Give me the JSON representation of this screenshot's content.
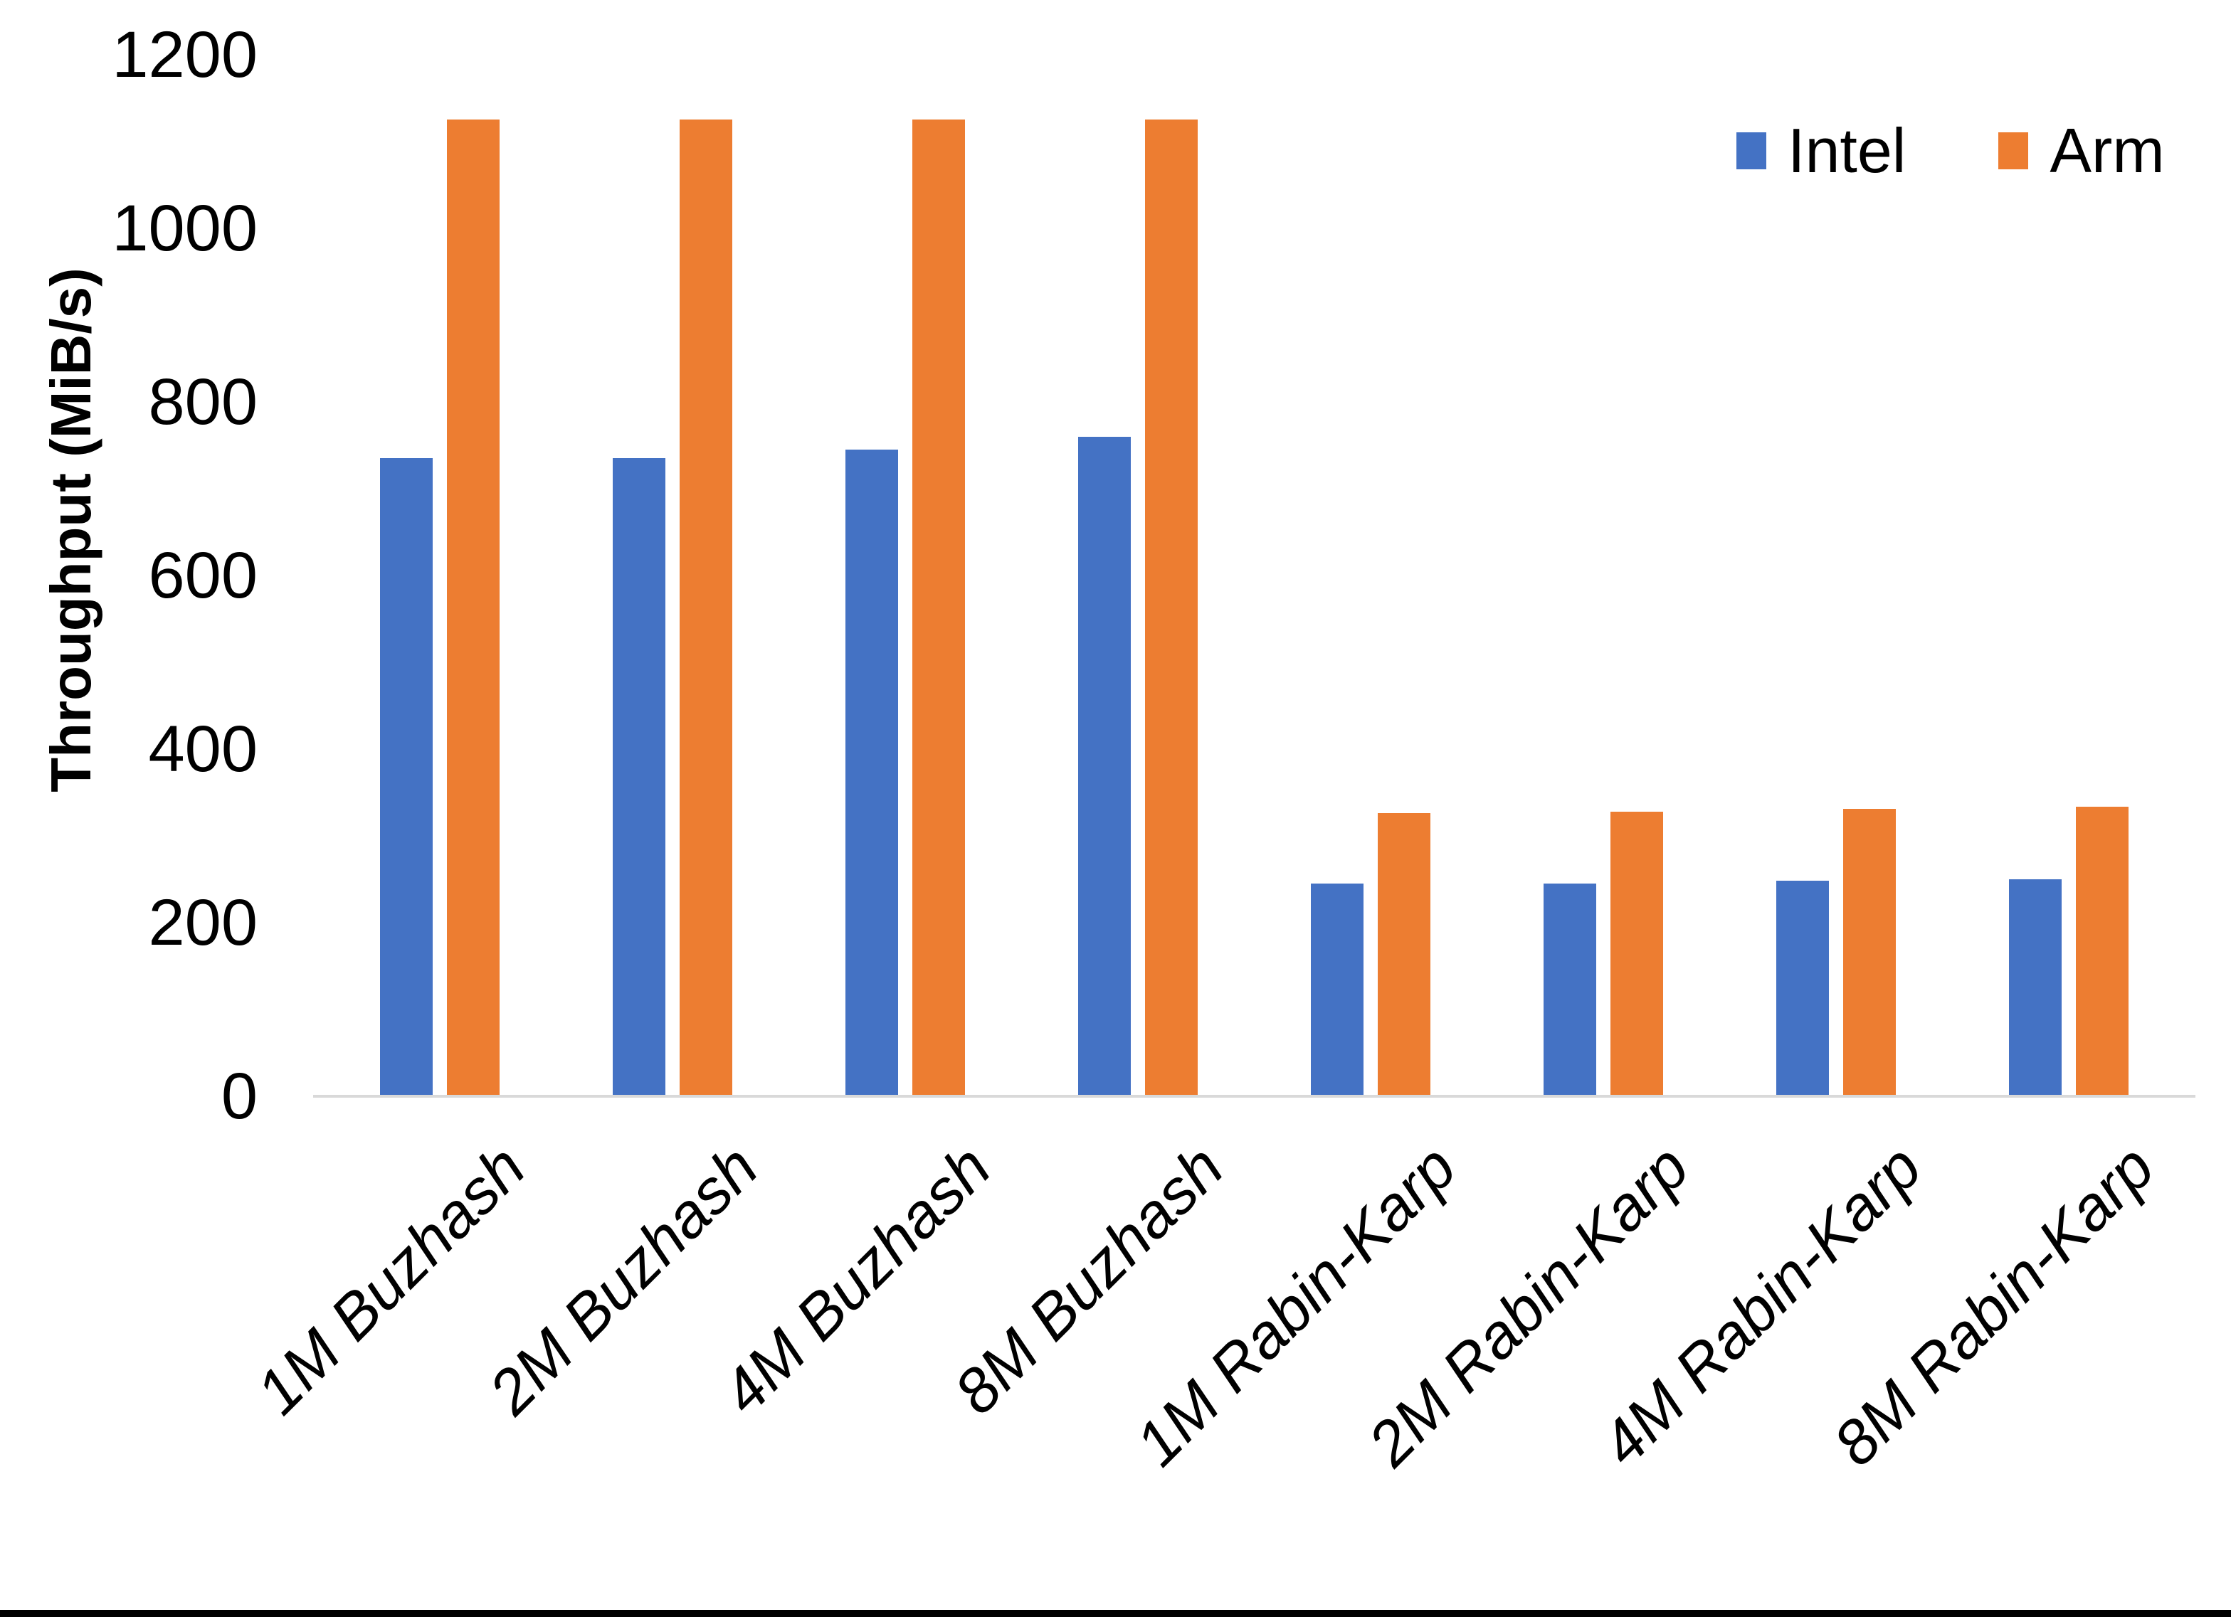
{
  "y_axis": {
    "title": "Throughput (MiB/s)",
    "ticks": [
      0,
      200,
      400,
      600,
      800,
      1000,
      1200
    ]
  },
  "chart_data": {
    "type": "bar",
    "title": "",
    "xlabel": "",
    "ylabel": "Throughput (MiB/s)",
    "categories": [
      "1M Buzhash",
      "2M Buzhash",
      "4M Buzhash",
      "8M Buzhash",
      "1M Rabin-Karp",
      "2M Rabin-Karp",
      "4M Rabin-Karp",
      "8M Rabin-Karp"
    ],
    "series": [
      {
        "name": "Intel",
        "color": "#4472C4",
        "values": [
          735,
          735,
          745,
          760,
          245,
          245,
          248,
          250
        ]
      },
      {
        "name": "Arm",
        "color": "#ED7D31",
        "values": [
          1125,
          1125,
          1125,
          1125,
          326,
          328,
          331,
          334
        ]
      }
    ],
    "ylim": [
      0,
      1200
    ],
    "ytick_step": 200,
    "grid": false,
    "legend_position": "top-right",
    "axis_line_color": "#D9D9D9",
    "background_color": "#FFFFFF"
  }
}
